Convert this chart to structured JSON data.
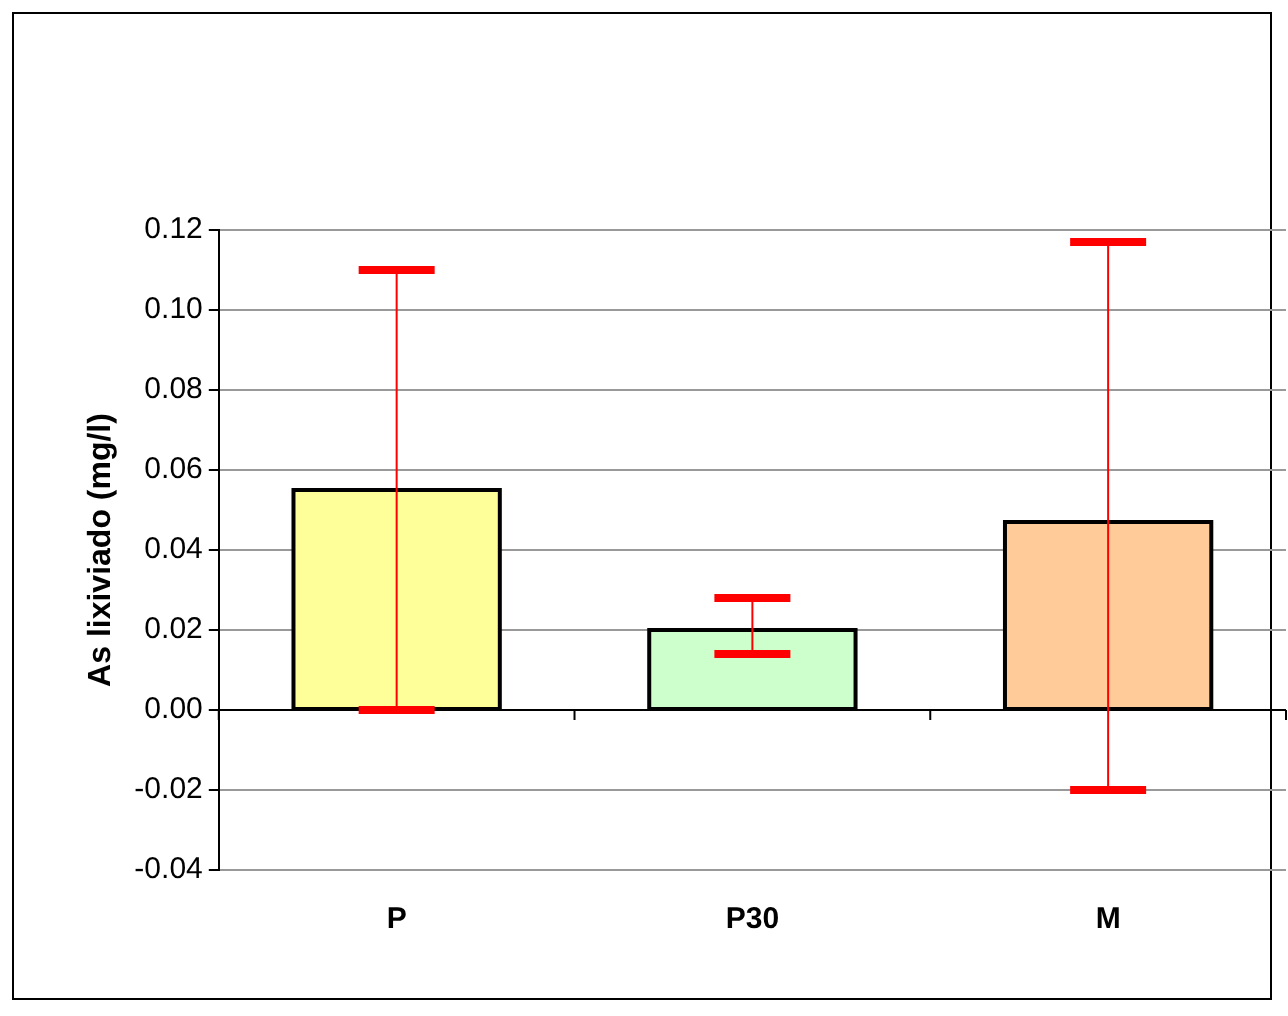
{
  "chart_data": {
    "type": "bar",
    "ylabel": "As lixiviado (mg/l)",
    "categories": [
      "P",
      "P30",
      "M"
    ],
    "values": [
      0.055,
      0.02,
      0.047
    ],
    "colors": [
      "#ffff99",
      "#ccffcc",
      "#ffcc99"
    ],
    "errors": [
      [
        0,
        0.11
      ],
      [
        0.014,
        0.028
      ],
      [
        -0.02,
        0.117
      ]
    ],
    "ylim": [
      -0.04,
      0.12
    ],
    "yticks": [
      {
        "value": -0.04,
        "label": "-0.04"
      },
      {
        "value": -0.02,
        "label": "-0.02"
      },
      {
        "value": 0,
        "label": "0.00"
      },
      {
        "value": 0.02,
        "label": "0.02"
      },
      {
        "value": 0.04,
        "label": "0.04"
      },
      {
        "value": 0.06,
        "label": "0.06"
      },
      {
        "value": 0.08,
        "label": "0.08"
      },
      {
        "value": 0.1,
        "label": "0.10"
      },
      {
        "value": 0.12,
        "label": "0.12"
      }
    ],
    "grid": "y",
    "legend": false
  }
}
